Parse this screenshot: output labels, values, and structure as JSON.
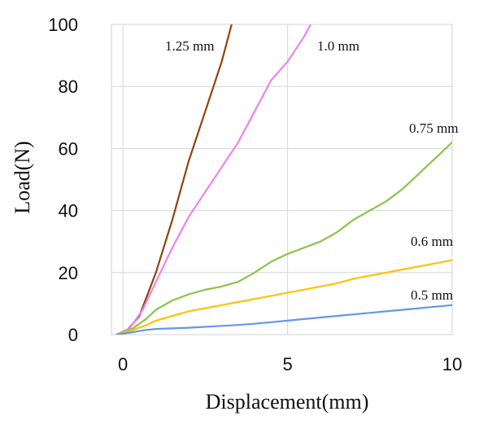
{
  "chart_data": {
    "type": "line",
    "xlabel": "Displacement(mm)",
    "ylabel": "Load(N)",
    "xlim": [
      0,
      10
    ],
    "ylim": [
      0,
      100
    ],
    "x_ticks": [
      "0",
      "5",
      "10"
    ],
    "y_ticks": [
      "0",
      "20",
      "40",
      "60",
      "80",
      "100"
    ],
    "grid": "major gridlines on both axes",
    "legend": "inline labels next to curves",
    "series": [
      {
        "name": "1.25 mm",
        "color": "#8B4513",
        "points": [
          [
            -0.2,
            0
          ],
          [
            0.1,
            1
          ],
          [
            0.5,
            6
          ],
          [
            1.0,
            20
          ],
          [
            1.5,
            37
          ],
          [
            2.0,
            56
          ],
          [
            2.5,
            72
          ],
          [
            3.0,
            88
          ],
          [
            3.3,
            100
          ]
        ]
      },
      {
        "name": "1.0 mm",
        "color": "#EE82EE",
        "points": [
          [
            -0.2,
            0
          ],
          [
            0.2,
            2
          ],
          [
            0.6,
            8
          ],
          [
            1.0,
            17
          ],
          [
            1.5,
            28
          ],
          [
            2.0,
            38
          ],
          [
            2.5,
            46
          ],
          [
            3.0,
            54
          ],
          [
            3.5,
            62
          ],
          [
            4.0,
            72
          ],
          [
            4.5,
            82
          ],
          [
            5.0,
            88
          ],
          [
            5.5,
            96
          ],
          [
            5.7,
            100
          ]
        ]
      },
      {
        "name": "0.75 mm",
        "color": "#8BC34A",
        "points": [
          [
            -0.2,
            0
          ],
          [
            0.3,
            2
          ],
          [
            0.7,
            5
          ],
          [
            1.0,
            8
          ],
          [
            1.5,
            11
          ],
          [
            2.0,
            13
          ],
          [
            2.5,
            14.5
          ],
          [
            3.0,
            15.5
          ],
          [
            3.5,
            17
          ],
          [
            4.0,
            20
          ],
          [
            4.5,
            23.5
          ],
          [
            5.0,
            26
          ],
          [
            5.5,
            28
          ],
          [
            6.0,
            30
          ],
          [
            6.5,
            33
          ],
          [
            7.0,
            37
          ],
          [
            7.5,
            40
          ],
          [
            8.0,
            43
          ],
          [
            8.5,
            47
          ],
          [
            9.0,
            52
          ],
          [
            9.5,
            57
          ],
          [
            10.0,
            62
          ]
        ]
      },
      {
        "name": "0.6 mm",
        "color": "#FFC107",
        "points": [
          [
            -0.2,
            0
          ],
          [
            0.3,
            1.5
          ],
          [
            0.7,
            3
          ],
          [
            1.0,
            4.5
          ],
          [
            1.5,
            6
          ],
          [
            2.0,
            7.5
          ],
          [
            2.5,
            8.5
          ],
          [
            3.0,
            9.5
          ],
          [
            3.5,
            10.5
          ],
          [
            4.0,
            11.5
          ],
          [
            4.5,
            12.5
          ],
          [
            5.0,
            13.5
          ],
          [
            5.5,
            14.5
          ],
          [
            6.0,
            15.5
          ],
          [
            6.5,
            16.5
          ],
          [
            7.0,
            18
          ],
          [
            7.5,
            19
          ],
          [
            8.0,
            20
          ],
          [
            8.5,
            21
          ],
          [
            9.0,
            22
          ],
          [
            9.5,
            23
          ],
          [
            10.0,
            24
          ]
        ]
      },
      {
        "name": "0.5 mm",
        "color": "#6495ED",
        "points": [
          [
            -0.2,
            0
          ],
          [
            0.3,
            0.8
          ],
          [
            0.7,
            1.5
          ],
          [
            1.0,
            1.8
          ],
          [
            1.5,
            2
          ],
          [
            2.0,
            2.2
          ],
          [
            2.5,
            2.5
          ],
          [
            3.0,
            2.8
          ],
          [
            3.5,
            3.1
          ],
          [
            4.0,
            3.5
          ],
          [
            4.5,
            4
          ],
          [
            5.0,
            4.5
          ],
          [
            5.5,
            5
          ],
          [
            6.0,
            5.5
          ],
          [
            6.5,
            6
          ],
          [
            7.0,
            6.5
          ],
          [
            7.5,
            7
          ],
          [
            8.0,
            7.5
          ],
          [
            8.5,
            8
          ],
          [
            9.0,
            8.5
          ],
          [
            9.5,
            9
          ],
          [
            10.0,
            9.5
          ]
        ]
      }
    ]
  }
}
